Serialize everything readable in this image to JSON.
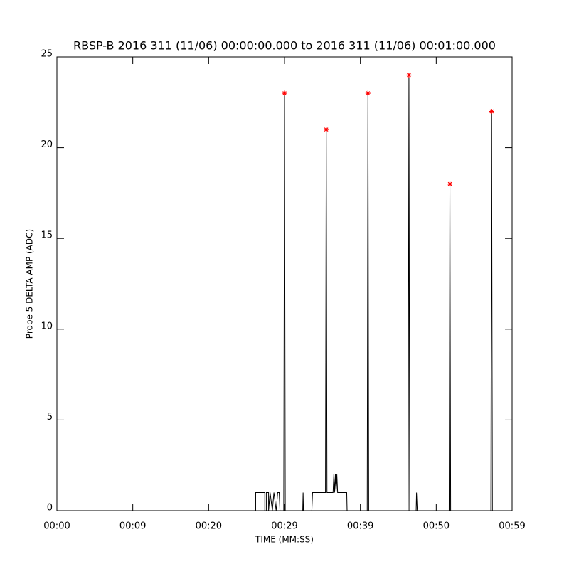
{
  "chart_data": {
    "type": "line",
    "title": "RBSP-B 2016 311 (11/06) 00:00:00.000 to 2016 311 (11/06) 00:01:00.000",
    "x_label": "TIME (MM:SS)",
    "y_label": "Probe 5 DELTA AMP (ADC)",
    "xlim": [
      0,
      60
    ],
    "ylim": [
      0,
      25
    ],
    "xticks": [
      {
        "value": 0,
        "label": "00:00"
      },
      {
        "value": 10,
        "label": "00:09"
      },
      {
        "value": 20,
        "label": "00:20"
      },
      {
        "value": 30,
        "label": "00:29"
      },
      {
        "value": 40,
        "label": "00:39"
      },
      {
        "value": 50,
        "label": "00:50"
      },
      {
        "value": 60,
        "label": "00:59"
      }
    ],
    "yticks": [
      0,
      5,
      10,
      15,
      20,
      25
    ],
    "series": [
      {
        "type": "line",
        "color": "#000000",
        "x": [
          0,
          26.2,
          26.2,
          27.4,
          27.4,
          27.6,
          27.6,
          27.9,
          27.9,
          28.1,
          28.4,
          28.6,
          28.9,
          29.1,
          29.3,
          29.4,
          29.9,
          30.0,
          30.1,
          32.4,
          32.45,
          32.5,
          33.6,
          33.7,
          35.4,
          35.5,
          35.6,
          36.4,
          36.5,
          36.6,
          36.7,
          36.8,
          36.9,
          37.0,
          38.2,
          38.25,
          40.9,
          41.0,
          41.1,
          46.3,
          46.4,
          46.5,
          47.35,
          47.4,
          47.5,
          51.7,
          51.8,
          51.9,
          57.2,
          57.3,
          57.4,
          60
        ],
        "values": [
          0,
          0,
          1,
          1,
          0,
          0,
          1,
          1,
          0,
          1,
          0,
          1,
          0,
          1,
          1,
          0,
          0,
          23,
          0,
          0,
          1,
          0,
          0,
          1,
          1,
          21,
          1,
          1,
          2,
          1,
          2,
          1,
          2,
          1,
          1,
          0,
          0,
          23,
          0,
          0,
          24,
          0,
          0,
          1,
          0,
          0,
          18,
          0,
          0,
          22,
          0,
          0
        ]
      },
      {
        "type": "scatter",
        "color": "#ff0000",
        "x": [
          30.0,
          35.5,
          41.0,
          46.4,
          51.8,
          57.3
        ],
        "values": [
          23,
          21,
          23,
          24,
          18,
          22
        ]
      }
    ]
  }
}
